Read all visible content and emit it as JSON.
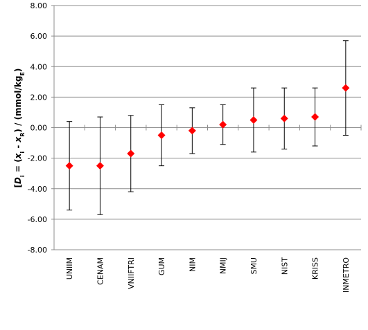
{
  "chart_data": {
    "type": "scatter",
    "ylabel": {
      "parts": [
        {
          "text": "[",
          "style": "normal"
        },
        {
          "text": "D",
          "style": "italic"
        },
        {
          "text": "i",
          "style": "sub"
        },
        {
          "text": " = (",
          "style": "normal"
        },
        {
          "text": "x",
          "style": "italic"
        },
        {
          "text": "i",
          "style": "sub"
        },
        {
          "text": " - ",
          "style": "normal"
        },
        {
          "text": "x",
          "style": "italic"
        },
        {
          "text": "R",
          "style": "sub"
        },
        {
          "text": ") / (mmol/kg",
          "style": "normal"
        },
        {
          "text": "E",
          "style": "sub"
        },
        {
          "text": ")",
          "style": "normal"
        }
      ]
    },
    "ylim": [
      -8,
      8
    ],
    "yticks": [
      "8.00",
      "6.00",
      "4.00",
      "2.00",
      "0.00",
      "-2.00",
      "-4.00",
      "-6.00",
      "-8.00"
    ],
    "ytick_values": [
      8,
      6,
      4,
      2,
      0,
      -2,
      -4,
      -6,
      -8
    ],
    "grid": "horizontal",
    "marker": "diamond",
    "marker_color": "#ff0000",
    "errorbar_color": "#000000",
    "categories": [
      "UNIIM",
      "CENAM",
      "VNIIFTRI",
      "GUM",
      "NIM",
      "NMIJ",
      "SMU",
      "NIST",
      "KRISS",
      "INMETRO"
    ],
    "values": [
      -2.5,
      -2.5,
      -1.7,
      -0.5,
      -0.2,
      0.2,
      0.5,
      0.6,
      0.7,
      2.6
    ],
    "error_low": [
      -5.4,
      -5.7,
      -4.2,
      -2.5,
      -1.7,
      -1.1,
      -1.6,
      -1.4,
      -1.2,
      -0.5
    ],
    "error_high": [
      0.4,
      0.7,
      0.8,
      1.5,
      1.3,
      1.5,
      2.6,
      2.6,
      2.6,
      5.7
    ]
  }
}
